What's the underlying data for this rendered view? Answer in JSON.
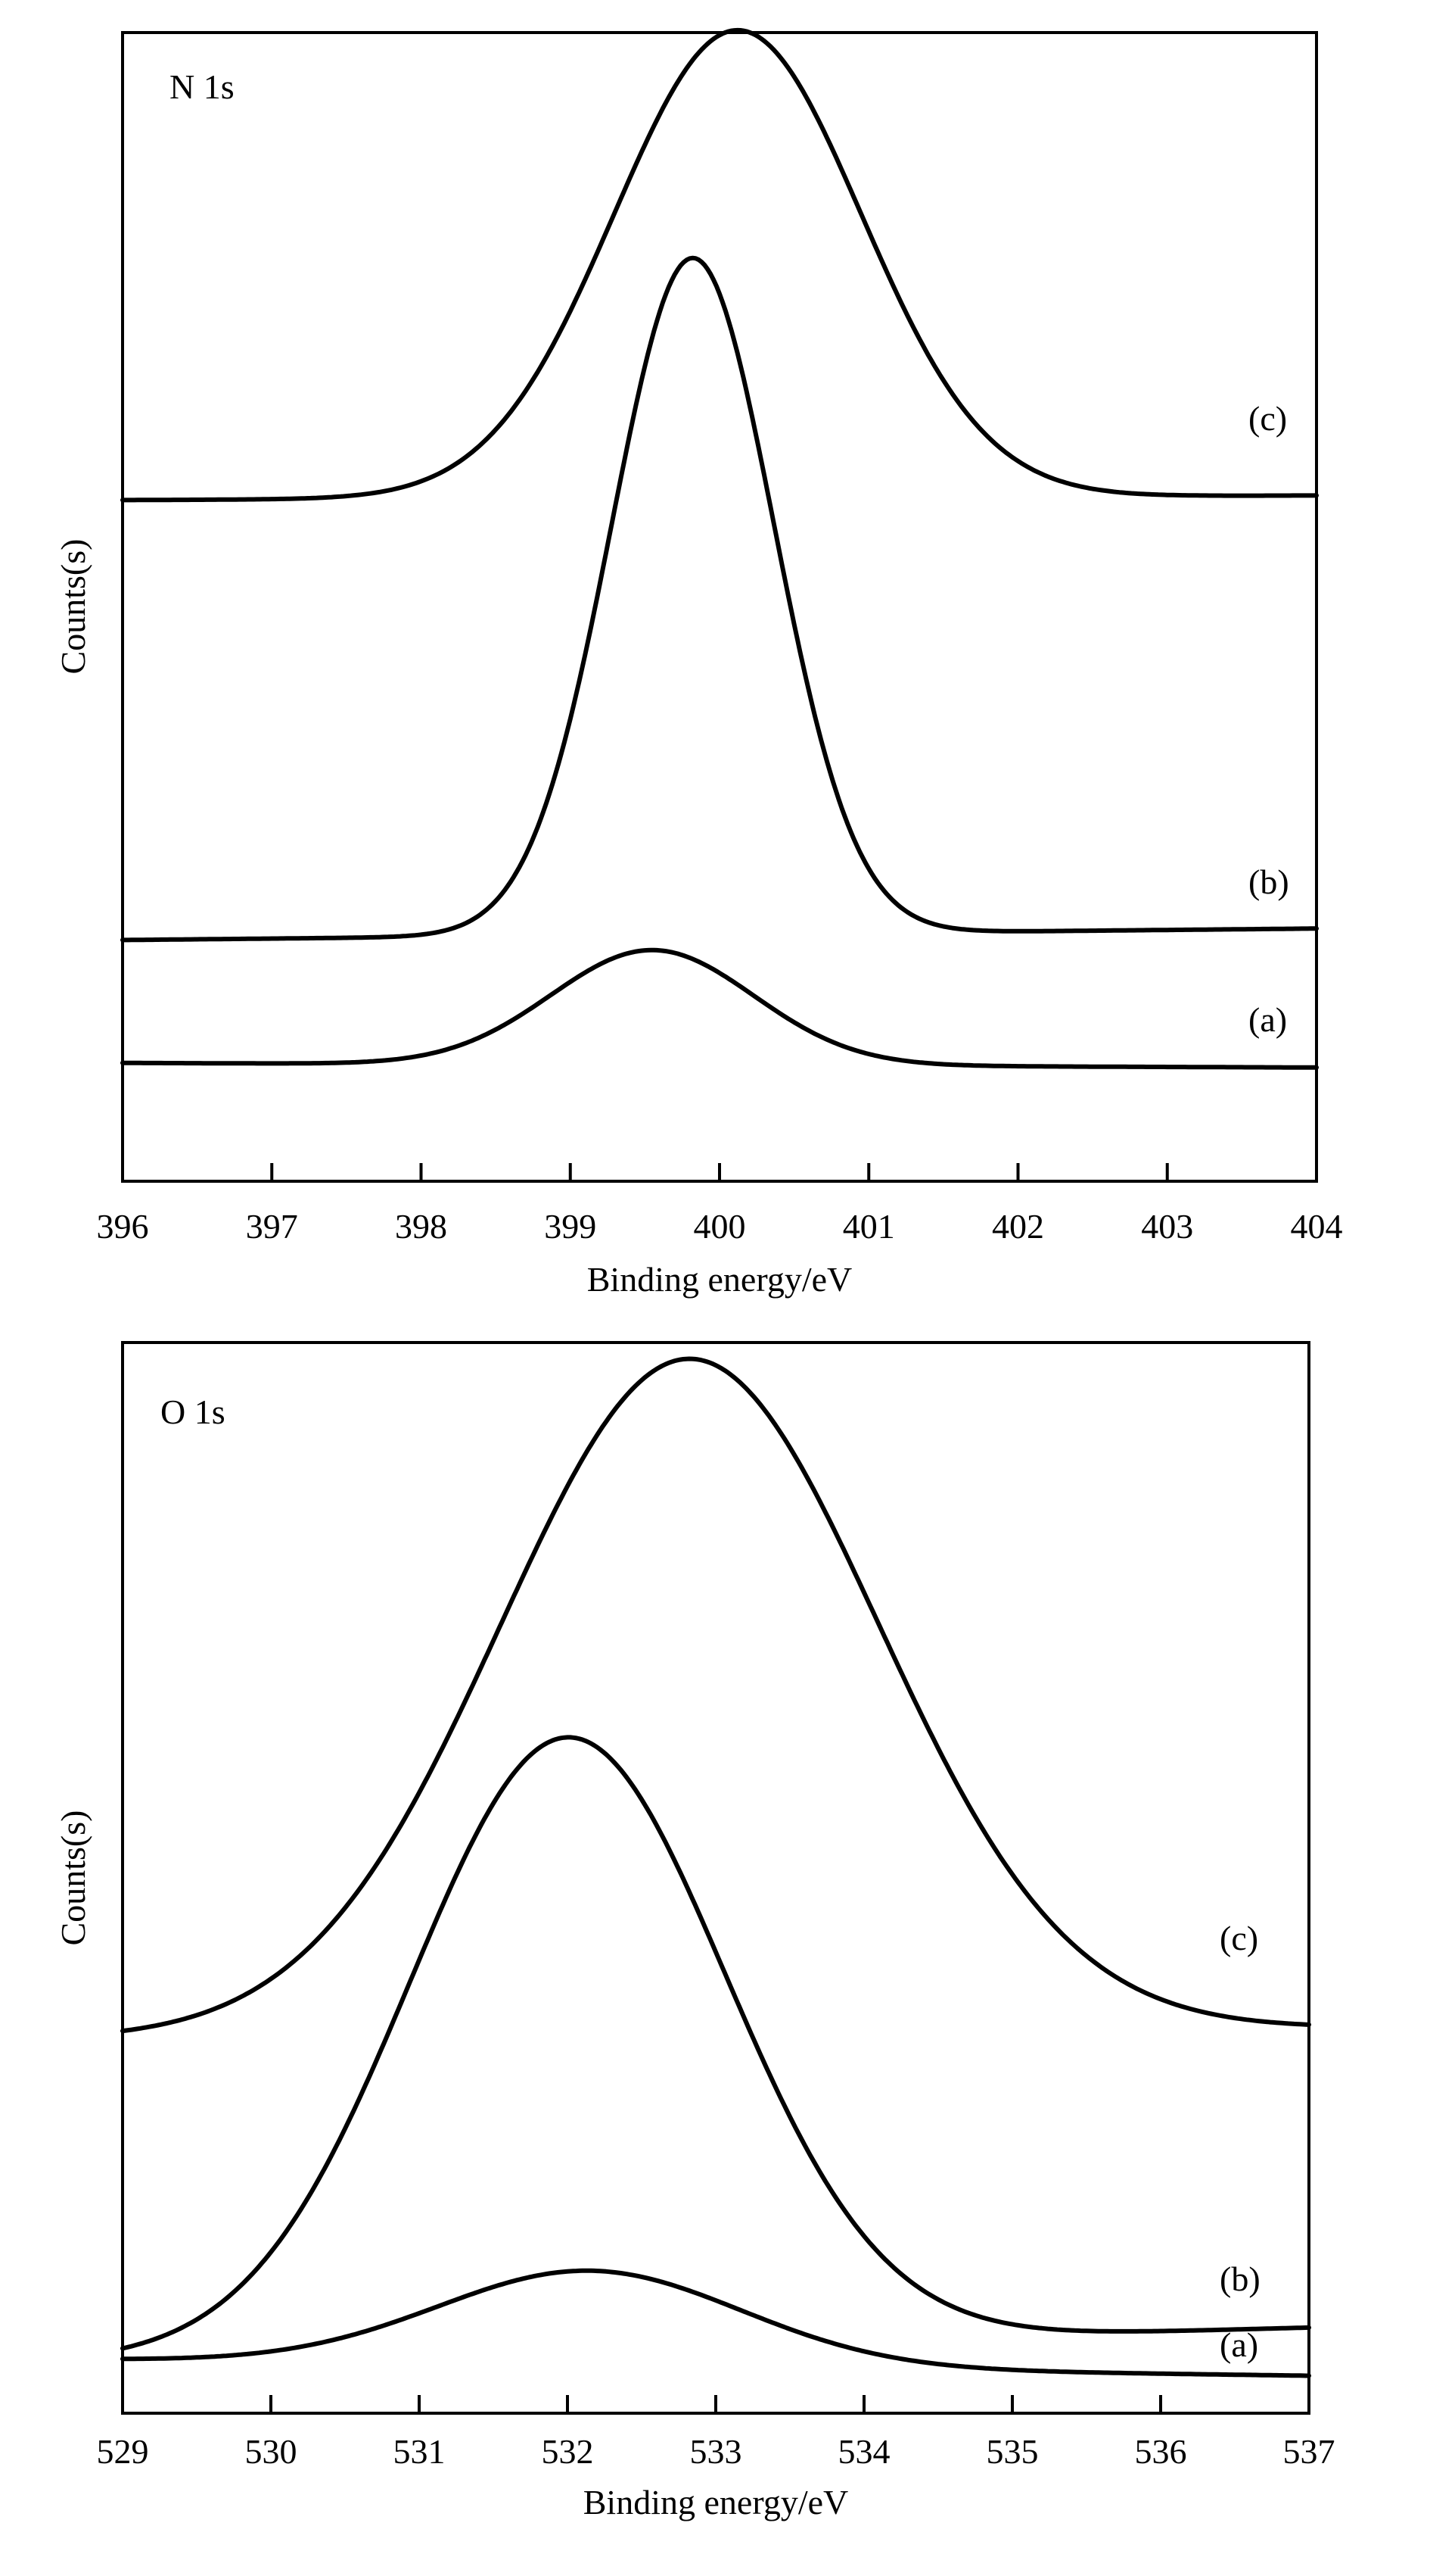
{
  "chart_data": [
    {
      "type": "line",
      "title": "N 1s",
      "xlabel": "Binding energy/eV",
      "ylabel": "Counts(s)",
      "xlim": [
        396,
        404
      ],
      "ylim": [
        0,
        100
      ],
      "xticks": [
        "396",
        "397",
        "398",
        "399",
        "400",
        "401",
        "402",
        "403",
        "404"
      ],
      "yticks": [],
      "grid": false,
      "series": [
        {
          "name": "(a)",
          "baseline_left": 10.3,
          "baseline_right": 9.9,
          "peak_center": 399.55,
          "peak_height": 10.0,
          "peak_fwhm": 1.6
        },
        {
          "name": "(b)",
          "baseline_left": 21.0,
          "baseline_right": 22.0,
          "peak_center": 399.82,
          "peak_height": 58.9,
          "peak_fwhm": 1.28
        },
        {
          "name": "(c)",
          "baseline_left": 59.3,
          "baseline_right": 59.7,
          "peak_center": 400.12,
          "peak_height": 40.7,
          "peak_fwhm": 1.95
        }
      ]
    },
    {
      "type": "line",
      "title": "O 1s",
      "xlabel": "Binding energy/eV",
      "ylabel": "Counts(s)",
      "xlim": [
        529,
        537
      ],
      "ylim": [
        0,
        100
      ],
      "xticks": [
        "529",
        "530",
        "531",
        "532",
        "533",
        "534",
        "535",
        "536",
        "537"
      ],
      "yticks": [],
      "grid": false,
      "series": [
        {
          "name": "(a)",
          "baseline_left": 5.0,
          "baseline_right": 3.5,
          "peak_center": 532.15,
          "peak_height": 8.9,
          "peak_fwhm": 2.4
        },
        {
          "name": "(b)",
          "baseline_left": 5.0,
          "baseline_right": 8.0,
          "peak_center": 532.0,
          "peak_height": 57.0,
          "peak_fwhm": 2.5
        },
        {
          "name": "(c)",
          "baseline_left": 35.0,
          "baseline_right": 36.0,
          "peak_center": 532.82,
          "peak_height": 63.0,
          "peak_fwhm": 3.0
        }
      ]
    }
  ]
}
